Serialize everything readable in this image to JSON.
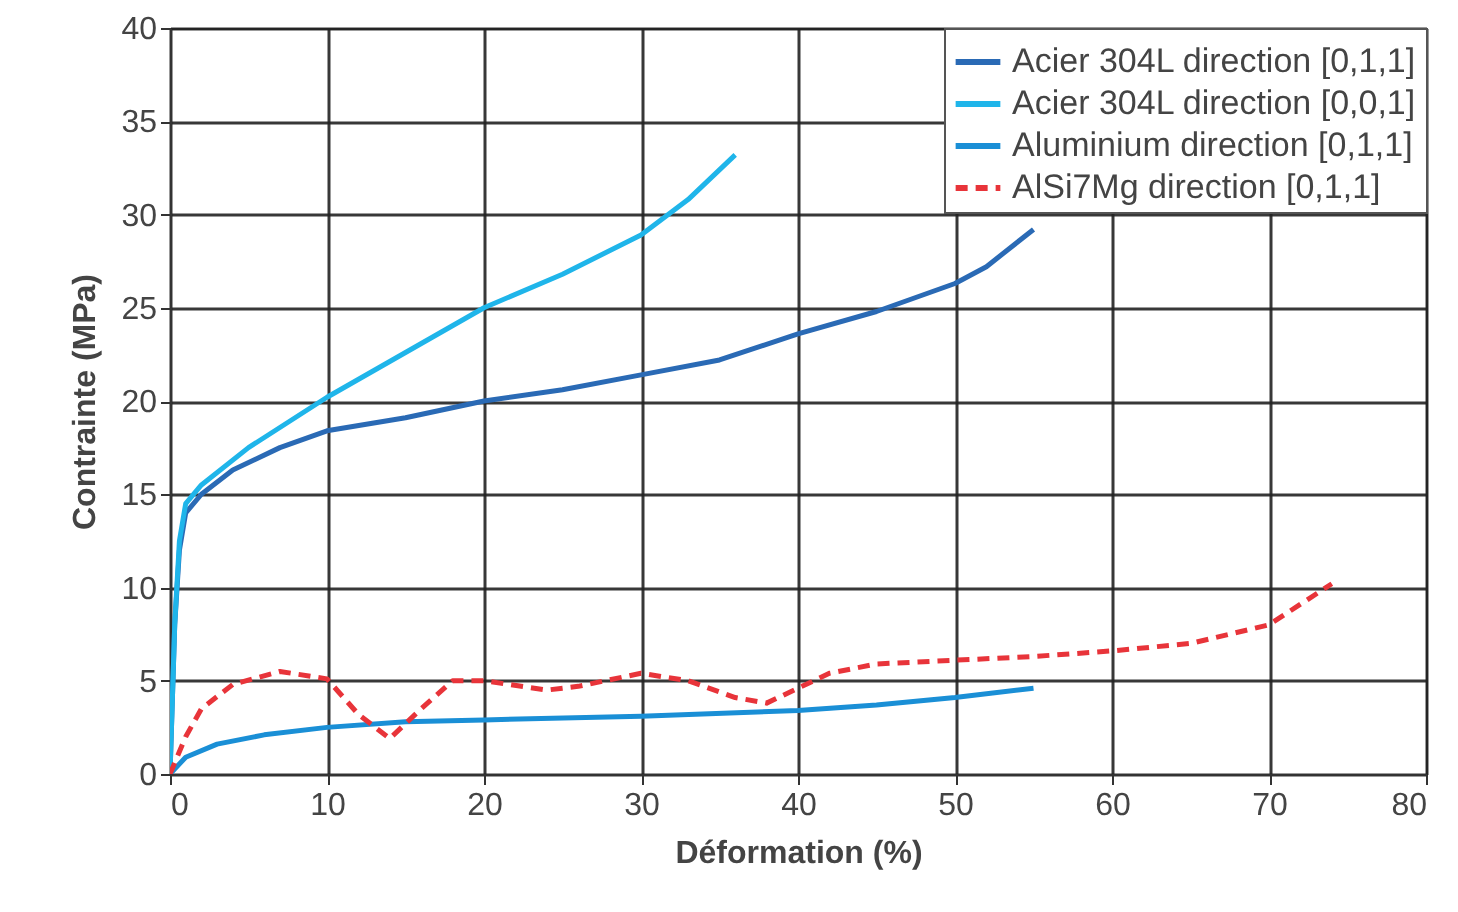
{
  "chart_data": {
    "type": "line",
    "xlabel": "Déformation (%)",
    "ylabel": "Contrainte (MPa)",
    "xlim": [
      0,
      80
    ],
    "xticks": [
      0,
      10,
      20,
      30,
      40,
      50,
      60,
      70,
      80
    ],
    "ylim": [
      0,
      40
    ],
    "yticks": [
      0,
      5,
      10,
      15,
      20,
      25,
      30,
      35,
      40
    ],
    "grid": true,
    "legend": "top right",
    "line_style": "solid",
    "series": [
      {
        "name": "Acier 304L direction [0,1,1]",
        "color": "#2a6ab5",
        "x": [
          0,
          0.3,
          0.6,
          1,
          2,
          4,
          7,
          10,
          15,
          20,
          25,
          30,
          35,
          40,
          45,
          50,
          52,
          55
        ],
        "values": [
          0,
          8,
          12,
          14,
          15,
          16.3,
          17.5,
          18.4,
          19.1,
          20,
          20.6,
          21.4,
          22.2,
          23.6,
          24.8,
          26.3,
          27.2,
          29.2
        ]
      },
      {
        "name": "Acier 304L direction [0,0,1]",
        "color": "#1fb5ea",
        "x": [
          0,
          0.3,
          0.6,
          1,
          2,
          5,
          10,
          15,
          20,
          25,
          30,
          33,
          36
        ],
        "values": [
          0,
          8,
          12.5,
          14.5,
          15.5,
          17.5,
          20.2,
          22.6,
          25,
          26.8,
          28.9,
          30.8,
          33.2
        ]
      },
      {
        "name": "Aluminium direction [0,1,1]",
        "color": "#1a8fd6",
        "x": [
          0,
          1,
          3,
          6,
          10,
          15,
          20,
          30,
          40,
          45,
          50,
          55
        ],
        "values": [
          0,
          0.9,
          1.6,
          2.1,
          2.5,
          2.8,
          2.9,
          3.1,
          3.4,
          3.7,
          4.1,
          4.6
        ]
      },
      {
        "name": "AlSi7Mg direction [0,1,1]",
        "color": "#e8343a",
        "line_style": "dashed",
        "x": [
          0,
          1,
          2,
          4,
          7,
          10,
          12,
          14,
          16,
          18,
          20,
          24,
          26,
          30,
          33,
          36,
          38,
          40,
          42,
          45,
          50,
          55,
          60,
          65,
          70,
          74
        ],
        "values": [
          0,
          2,
          3.5,
          4.8,
          5.5,
          5.1,
          3.2,
          1.9,
          3.5,
          5,
          5,
          4.5,
          4.7,
          5.4,
          5,
          4.1,
          3.8,
          4.6,
          5.4,
          5.9,
          6.1,
          6.3,
          6.6,
          7,
          8,
          10.2
        ]
      }
    ]
  }
}
